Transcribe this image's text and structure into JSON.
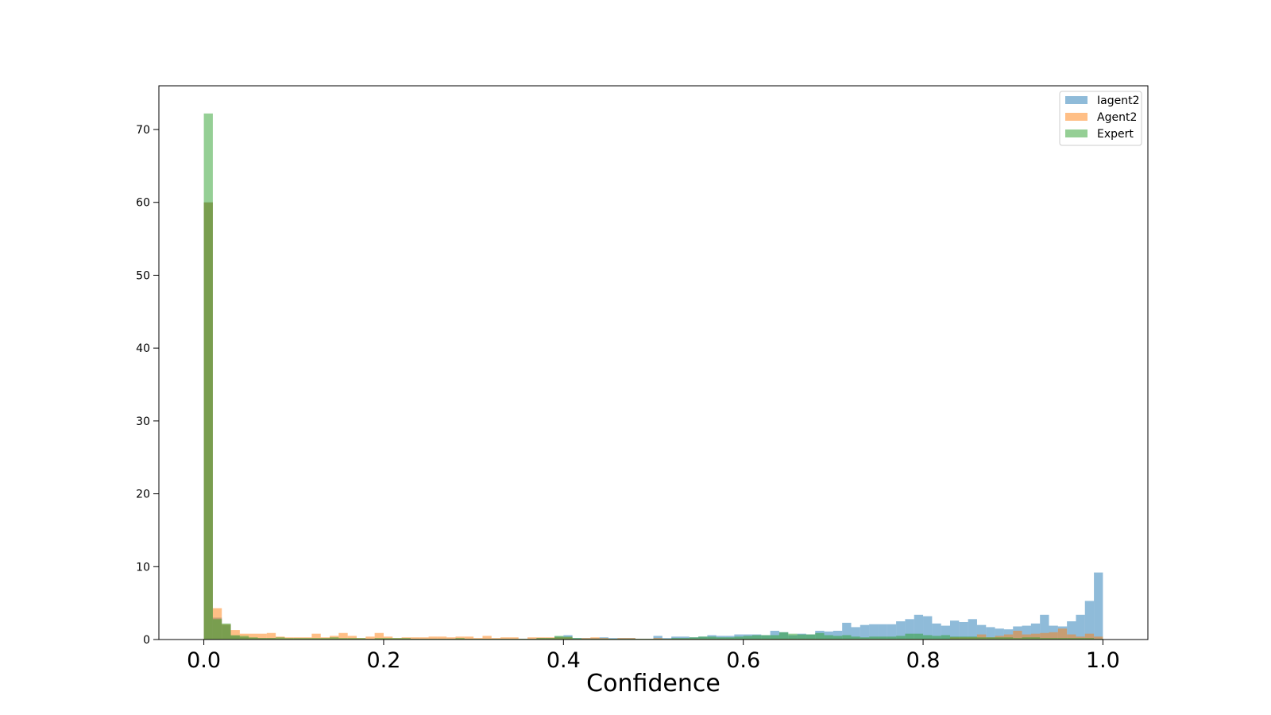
{
  "chart_data": {
    "type": "histogram",
    "title": "",
    "xlabel": "Confidence",
    "ylabel": "",
    "xlim": [
      -0.05,
      1.05
    ],
    "ylim": [
      0,
      76
    ],
    "bin_width": 0.01,
    "bin_start": 0.0,
    "bin_count": 100,
    "x_ticks": [
      0.0,
      0.2,
      0.4,
      0.6,
      0.8,
      1.0
    ],
    "x_tick_labels": [
      "0.0",
      "0.2",
      "0.4",
      "0.6",
      "0.8",
      "1.0"
    ],
    "y_ticks": [
      0,
      10,
      20,
      30,
      40,
      50,
      60,
      70
    ],
    "y_tick_labels": [
      "0",
      "10",
      "20",
      "30",
      "40",
      "50",
      "60",
      "70"
    ],
    "legend_position": "top-right",
    "series": [
      {
        "name": "Iagent2",
        "color": "#1f77b4",
        "opacity": 0.5,
        "values": [
          60.0,
          3.0,
          2.0,
          0.5,
          0.3,
          0.2,
          0.2,
          0.2,
          0.1,
          0.1,
          0.1,
          0.1,
          0.1,
          0.1,
          0.1,
          0.1,
          0.1,
          0.1,
          0.1,
          0.1,
          0.1,
          0.1,
          0.1,
          0.1,
          0.1,
          0.1,
          0.1,
          0.1,
          0.1,
          0.1,
          0.1,
          0.1,
          0.1,
          0.1,
          0.1,
          0.1,
          0.1,
          0.2,
          0.2,
          0.4,
          0.6,
          0.2,
          0.2,
          0.2,
          0.3,
          0.2,
          0.2,
          0.2,
          0.1,
          0.1,
          0.5,
          0.2,
          0.4,
          0.4,
          0.3,
          0.4,
          0.6,
          0.5,
          0.5,
          0.7,
          0.7,
          0.7,
          0.6,
          1.2,
          1.0,
          0.6,
          0.8,
          0.7,
          1.2,
          1.1,
          1.2,
          2.3,
          1.7,
          2.0,
          2.1,
          2.1,
          2.1,
          2.5,
          2.8,
          3.4,
          3.2,
          2.2,
          1.9,
          2.6,
          2.4,
          2.8,
          2.0,
          1.7,
          1.5,
          1.4,
          1.8,
          1.9,
          2.2,
          3.4,
          1.9,
          1.8,
          2.5,
          3.4,
          5.3,
          9.2
        ]
      },
      {
        "name": "Agent2",
        "color": "#ff7f0e",
        "opacity": 0.5,
        "values": [
          60.0,
          4.3,
          2.1,
          1.3,
          0.8,
          0.8,
          0.8,
          0.9,
          0.4,
          0.3,
          0.3,
          0.3,
          0.8,
          0.3,
          0.5,
          0.9,
          0.5,
          0.2,
          0.4,
          0.9,
          0.4,
          0.2,
          0.3,
          0.3,
          0.3,
          0.4,
          0.4,
          0.3,
          0.4,
          0.4,
          0.2,
          0.5,
          0.2,
          0.3,
          0.3,
          0.1,
          0.3,
          0.3,
          0.3,
          0.3,
          0.3,
          0.1,
          0.2,
          0.3,
          0.2,
          0.1,
          0.2,
          0.2,
          0.1,
          0.1,
          0.2,
          0.1,
          0.1,
          0.1,
          0.1,
          0.1,
          0.1,
          0.1,
          0.1,
          0.1,
          0.1,
          0.1,
          0.1,
          0.1,
          0.1,
          0.1,
          0.1,
          0.1,
          0.1,
          0.1,
          0.1,
          0.1,
          0.1,
          0.1,
          0.1,
          0.1,
          0.1,
          0.1,
          0.1,
          0.1,
          0.1,
          0.1,
          0.1,
          0.3,
          0.3,
          0.3,
          0.7,
          0.3,
          0.5,
          0.7,
          1.2,
          0.7,
          0.8,
          0.9,
          1.0,
          1.5,
          0.7,
          0.4,
          0.8,
          0.4
        ]
      },
      {
        "name": "Expert",
        "color": "#2ca02c",
        "opacity": 0.5,
        "values": [
          72.2,
          2.8,
          2.2,
          0.6,
          0.5,
          0.3,
          0.2,
          0.2,
          0.3,
          0.2,
          0.2,
          0.2,
          0.2,
          0.2,
          0.3,
          0.2,
          0.2,
          0.2,
          0.1,
          0.2,
          0.2,
          0.2,
          0.2,
          0.1,
          0.1,
          0.1,
          0.1,
          0.1,
          0.2,
          0.1,
          0.1,
          0.1,
          0.1,
          0.1,
          0.1,
          0.1,
          0.1,
          0.2,
          0.2,
          0.5,
          0.4,
          0.2,
          0.1,
          0.1,
          0.1,
          0.1,
          0.1,
          0.1,
          0.1,
          0.1,
          0.1,
          0.1,
          0.2,
          0.2,
          0.3,
          0.4,
          0.4,
          0.3,
          0.3,
          0.4,
          0.5,
          0.6,
          0.6,
          0.6,
          1.0,
          0.8,
          0.7,
          0.7,
          0.9,
          0.6,
          0.5,
          0.6,
          0.4,
          0.3,
          0.4,
          0.4,
          0.4,
          0.5,
          0.8,
          0.8,
          0.6,
          0.5,
          0.6,
          0.4,
          0.4,
          0.4,
          0.3,
          0.3,
          0.3,
          0.3,
          0.2,
          0.3,
          0.3,
          0.2,
          0.2,
          0.2,
          0.2,
          0.2,
          0.2,
          0.1
        ]
      }
    ]
  }
}
